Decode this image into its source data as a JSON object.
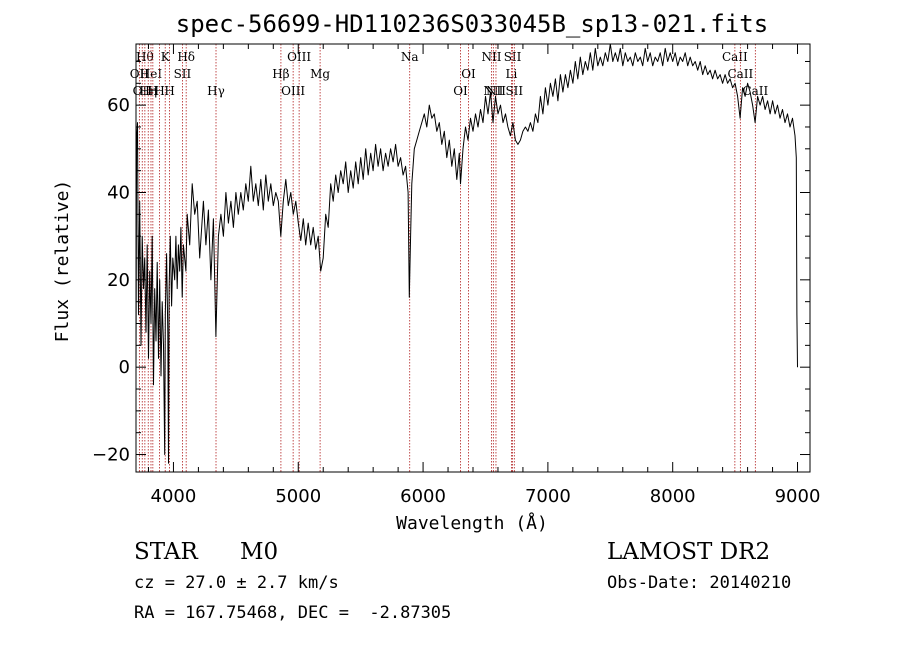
{
  "chart_data": {
    "type": "line",
    "title": "spec-56699-HD110236S033045B_sp13-021.fits",
    "xlabel": "Wavelength (Å)",
    "ylabel": "Flux (relative)",
    "xlim": [
      3700,
      9100
    ],
    "ylim": [
      -24,
      74
    ],
    "xticks": [
      4000,
      5000,
      6000,
      7000,
      8000,
      9000
    ],
    "yticks": [
      -20,
      0,
      20,
      40,
      60
    ],
    "grid": false,
    "series": [
      {
        "points": [
          [
            3700,
            0
          ],
          [
            3705,
            52
          ],
          [
            3712,
            56
          ],
          [
            3720,
            12
          ],
          [
            3730,
            38
          ],
          [
            3740,
            5
          ],
          [
            3750,
            30
          ],
          [
            3760,
            18
          ],
          [
            3770,
            25
          ],
          [
            3780,
            8
          ],
          [
            3790,
            28
          ],
          [
            3800,
            2
          ],
          [
            3810,
            22
          ],
          [
            3820,
            10
          ],
          [
            3830,
            30
          ],
          [
            3840,
            -4
          ],
          [
            3850,
            18
          ],
          [
            3860,
            6
          ],
          [
            3870,
            24
          ],
          [
            3880,
            2
          ],
          [
            3890,
            20
          ],
          [
            3900,
            -2
          ],
          [
            3910,
            15
          ],
          [
            3920,
            5
          ],
          [
            3930,
            -20
          ],
          [
            3935,
            12
          ],
          [
            3945,
            26
          ],
          [
            3955,
            8
          ],
          [
            3960,
            -22
          ],
          [
            3965,
            18
          ],
          [
            3975,
            30
          ],
          [
            3985,
            14
          ],
          [
            3995,
            25
          ],
          [
            4010,
            20
          ],
          [
            4020,
            30
          ],
          [
            4030,
            18
          ],
          [
            4040,
            28
          ],
          [
            4050,
            22
          ],
          [
            4060,
            32
          ],
          [
            4070,
            16
          ],
          [
            4080,
            28
          ],
          [
            4100,
            22
          ],
          [
            4110,
            35
          ],
          [
            4130,
            28
          ],
          [
            4150,
            42
          ],
          [
            4170,
            35
          ],
          [
            4190,
            38
          ],
          [
            4210,
            25
          ],
          [
            4240,
            38
          ],
          [
            4260,
            28
          ],
          [
            4280,
            36
          ],
          [
            4300,
            20
          ],
          [
            4320,
            34
          ],
          [
            4340,
            7
          ],
          [
            4360,
            30
          ],
          [
            4380,
            35
          ],
          [
            4400,
            30
          ],
          [
            4420,
            40
          ],
          [
            4440,
            33
          ],
          [
            4460,
            38
          ],
          [
            4480,
            32
          ],
          [
            4500,
            40
          ],
          [
            4520,
            35
          ],
          [
            4540,
            40
          ],
          [
            4560,
            36
          ],
          [
            4580,
            42
          ],
          [
            4600,
            38
          ],
          [
            4620,
            46
          ],
          [
            4640,
            38
          ],
          [
            4660,
            42
          ],
          [
            4680,
            37
          ],
          [
            4700,
            43
          ],
          [
            4720,
            36
          ],
          [
            4740,
            44
          ],
          [
            4760,
            38
          ],
          [
            4780,
            42
          ],
          [
            4800,
            37
          ],
          [
            4820,
            40
          ],
          [
            4840,
            38
          ],
          [
            4860,
            30
          ],
          [
            4880,
            38
          ],
          [
            4900,
            43
          ],
          [
            4920,
            37
          ],
          [
            4940,
            40
          ],
          [
            4960,
            35
          ],
          [
            4980,
            38
          ],
          [
            5000,
            33
          ],
          [
            5020,
            29
          ],
          [
            5040,
            34
          ],
          [
            5060,
            28
          ],
          [
            5080,
            33
          ],
          [
            5100,
            28
          ],
          [
            5120,
            32
          ],
          [
            5140,
            27
          ],
          [
            5160,
            30
          ],
          [
            5180,
            22
          ],
          [
            5200,
            25
          ],
          [
            5220,
            35
          ],
          [
            5240,
            32
          ],
          [
            5260,
            42
          ],
          [
            5280,
            38
          ],
          [
            5300,
            44
          ],
          [
            5320,
            40
          ],
          [
            5340,
            45
          ],
          [
            5360,
            42
          ],
          [
            5380,
            47
          ],
          [
            5400,
            40
          ],
          [
            5420,
            45
          ],
          [
            5440,
            41
          ],
          [
            5460,
            47
          ],
          [
            5480,
            42
          ],
          [
            5500,
            48
          ],
          [
            5520,
            43
          ],
          [
            5540,
            50
          ],
          [
            5560,
            44
          ],
          [
            5580,
            49
          ],
          [
            5600,
            45
          ],
          [
            5620,
            51
          ],
          [
            5640,
            46
          ],
          [
            5660,
            50
          ],
          [
            5680,
            45
          ],
          [
            5700,
            49
          ],
          [
            5720,
            46
          ],
          [
            5740,
            50
          ],
          [
            5760,
            47
          ],
          [
            5780,
            51
          ],
          [
            5800,
            46
          ],
          [
            5820,
            48
          ],
          [
            5840,
            44
          ],
          [
            5860,
            46
          ],
          [
            5880,
            40
          ],
          [
            5890,
            16
          ],
          [
            5900,
            30
          ],
          [
            5910,
            42
          ],
          [
            5930,
            50
          ],
          [
            5950,
            52
          ],
          [
            5970,
            54
          ],
          [
            5990,
            56
          ],
          [
            6010,
            58
          ],
          [
            6030,
            55
          ],
          [
            6050,
            60
          ],
          [
            6070,
            57
          ],
          [
            6090,
            58
          ],
          [
            6110,
            54
          ],
          [
            6130,
            56
          ],
          [
            6150,
            51
          ],
          [
            6170,
            54
          ],
          [
            6190,
            48
          ],
          [
            6210,
            52
          ],
          [
            6230,
            46
          ],
          [
            6250,
            50
          ],
          [
            6270,
            43
          ],
          [
            6290,
            49
          ],
          [
            6300,
            42
          ],
          [
            6320,
            50
          ],
          [
            6340,
            55
          ],
          [
            6360,
            52
          ],
          [
            6380,
            57
          ],
          [
            6400,
            54
          ],
          [
            6420,
            58
          ],
          [
            6440,
            55
          ],
          [
            6460,
            59
          ],
          [
            6480,
            56
          ],
          [
            6500,
            62
          ],
          [
            6520,
            58
          ],
          [
            6540,
            63
          ],
          [
            6560,
            56
          ],
          [
            6580,
            62
          ],
          [
            6600,
            58
          ],
          [
            6620,
            60
          ],
          [
            6640,
            56
          ],
          [
            6660,
            58
          ],
          [
            6680,
            55
          ],
          [
            6700,
            53
          ],
          [
            6720,
            56
          ],
          [
            6740,
            52
          ],
          [
            6760,
            51
          ],
          [
            6780,
            52
          ],
          [
            6800,
            54
          ],
          [
            6820,
            55
          ],
          [
            6840,
            54
          ],
          [
            6860,
            56
          ],
          [
            6880,
            54
          ],
          [
            6900,
            58
          ],
          [
            6920,
            56
          ],
          [
            6940,
            62
          ],
          [
            6960,
            58
          ],
          [
            6980,
            64
          ],
          [
            7000,
            60
          ],
          [
            7020,
            65
          ],
          [
            7040,
            62
          ],
          [
            7060,
            66
          ],
          [
            7080,
            61
          ],
          [
            7100,
            67
          ],
          [
            7120,
            63
          ],
          [
            7140,
            67
          ],
          [
            7160,
            64
          ],
          [
            7180,
            68
          ],
          [
            7200,
            65
          ],
          [
            7220,
            70
          ],
          [
            7240,
            66
          ],
          [
            7260,
            71
          ],
          [
            7280,
            67
          ],
          [
            7300,
            70
          ],
          [
            7320,
            68
          ],
          [
            7340,
            72
          ],
          [
            7360,
            68
          ],
          [
            7380,
            73
          ],
          [
            7400,
            69
          ],
          [
            7420,
            71
          ],
          [
            7440,
            69
          ],
          [
            7460,
            72
          ],
          [
            7480,
            70
          ],
          [
            7500,
            74
          ],
          [
            7520,
            70
          ],
          [
            7540,
            72
          ],
          [
            7560,
            70
          ],
          [
            7580,
            73
          ],
          [
            7600,
            69
          ],
          [
            7620,
            72
          ],
          [
            7640,
            70
          ],
          [
            7660,
            71
          ],
          [
            7680,
            69
          ],
          [
            7700,
            72
          ],
          [
            7720,
            70
          ],
          [
            7740,
            71
          ],
          [
            7760,
            69
          ],
          [
            7780,
            73
          ],
          [
            7800,
            70
          ],
          [
            7820,
            72
          ],
          [
            7840,
            69
          ],
          [
            7860,
            71
          ],
          [
            7880,
            70
          ],
          [
            7900,
            72
          ],
          [
            7920,
            69
          ],
          [
            7940,
            73
          ],
          [
            7960,
            70
          ],
          [
            7980,
            72
          ],
          [
            8000,
            70
          ],
          [
            8020,
            72
          ],
          [
            8040,
            69
          ],
          [
            8060,
            71
          ],
          [
            8080,
            70
          ],
          [
            8100,
            72
          ],
          [
            8120,
            69
          ],
          [
            8140,
            71
          ],
          [
            8160,
            69
          ],
          [
            8180,
            70
          ],
          [
            8200,
            68
          ],
          [
            8220,
            70
          ],
          [
            8240,
            67
          ],
          [
            8260,
            69
          ],
          [
            8280,
            67
          ],
          [
            8300,
            68
          ],
          [
            8320,
            66
          ],
          [
            8340,
            68
          ],
          [
            8360,
            66
          ],
          [
            8380,
            67
          ],
          [
            8400,
            65
          ],
          [
            8420,
            67
          ],
          [
            8440,
            65
          ],
          [
            8460,
            66
          ],
          [
            8480,
            64
          ],
          [
            8500,
            65
          ],
          [
            8520,
            62
          ],
          [
            8540,
            57
          ],
          [
            8560,
            64
          ],
          [
            8580,
            62
          ],
          [
            8600,
            65
          ],
          [
            8620,
            63
          ],
          [
            8640,
            60
          ],
          [
            8660,
            56
          ],
          [
            8680,
            62
          ],
          [
            8700,
            60
          ],
          [
            8720,
            62
          ],
          [
            8740,
            59
          ],
          [
            8760,
            61
          ],
          [
            8780,
            58
          ],
          [
            8800,
            61
          ],
          [
            8820,
            58
          ],
          [
            8840,
            60
          ],
          [
            8860,
            57
          ],
          [
            8880,
            59
          ],
          [
            8900,
            56
          ],
          [
            8920,
            58
          ],
          [
            8940,
            55
          ],
          [
            8960,
            57
          ],
          [
            8980,
            53
          ],
          [
            8990,
            48
          ],
          [
            8995,
            12
          ],
          [
            9000,
            0
          ]
        ]
      }
    ],
    "line_markers": [
      {
        "wl": 3727,
        "label": "OII",
        "row": 2
      },
      {
        "wl": 3750,
        "label": "OII",
        "row": 3
      },
      {
        "wl": 3771,
        "label": "Hθ",
        "row": 1
      },
      {
        "wl": 3798,
        "label": "Hη",
        "row": 3
      },
      {
        "wl": 3820,
        "label": "HeI",
        "row": 2
      },
      {
        "wl": 3835,
        "label": "H",
        "row": 3
      },
      {
        "wl": 3889,
        "label": "H",
        "row": 3
      },
      {
        "wl": 3934,
        "label": "K",
        "row": 1
      },
      {
        "wl": 3969,
        "label": "H",
        "row": 3
      },
      {
        "wl": 4072,
        "label": "SII",
        "row": 2
      },
      {
        "wl": 4102,
        "label": "Hδ",
        "row": 1
      },
      {
        "wl": 4341,
        "label": "Hγ",
        "row": 3
      },
      {
        "wl": 4861,
        "label": "Hβ",
        "row": 2
      },
      {
        "wl": 4959,
        "label": "OIII",
        "row": 3
      },
      {
        "wl": 5007,
        "label": "OIII",
        "row": 1
      },
      {
        "wl": 5175,
        "label": "Mg",
        "row": 2
      },
      {
        "wl": 5893,
        "label": "Na",
        "row": 1
      },
      {
        "wl": 6300,
        "label": "OI",
        "row": 3
      },
      {
        "wl": 6364,
        "label": "OI",
        "row": 2
      },
      {
        "wl": 6548,
        "label": "NII",
        "row": 1
      },
      {
        "wl": 6563,
        "label": "NII",
        "row": 3
      },
      {
        "wl": 6584,
        "label": "NII",
        "row": 3
      },
      {
        "wl": 6708,
        "label": "Li",
        "row": 2
      },
      {
        "wl": 6717,
        "label": "SII",
        "row": 1
      },
      {
        "wl": 6731,
        "label": "SII",
        "row": 3
      },
      {
        "wl": 8498,
        "label": "CaII",
        "row": 1
      },
      {
        "wl": 8542,
        "label": "CaII",
        "row": 2
      },
      {
        "wl": 8662,
        "label": "CaII",
        "row": 3
      }
    ]
  },
  "info": {
    "object_class": "STAR",
    "subclass": "M0",
    "survey": "LAMOST DR2",
    "redshift": "cz = 27.0 ± 2.7 km/s",
    "obs_date": "Obs-Date: 20140210",
    "coords": "RA = 167.75468, DEC =  -2.87305"
  }
}
